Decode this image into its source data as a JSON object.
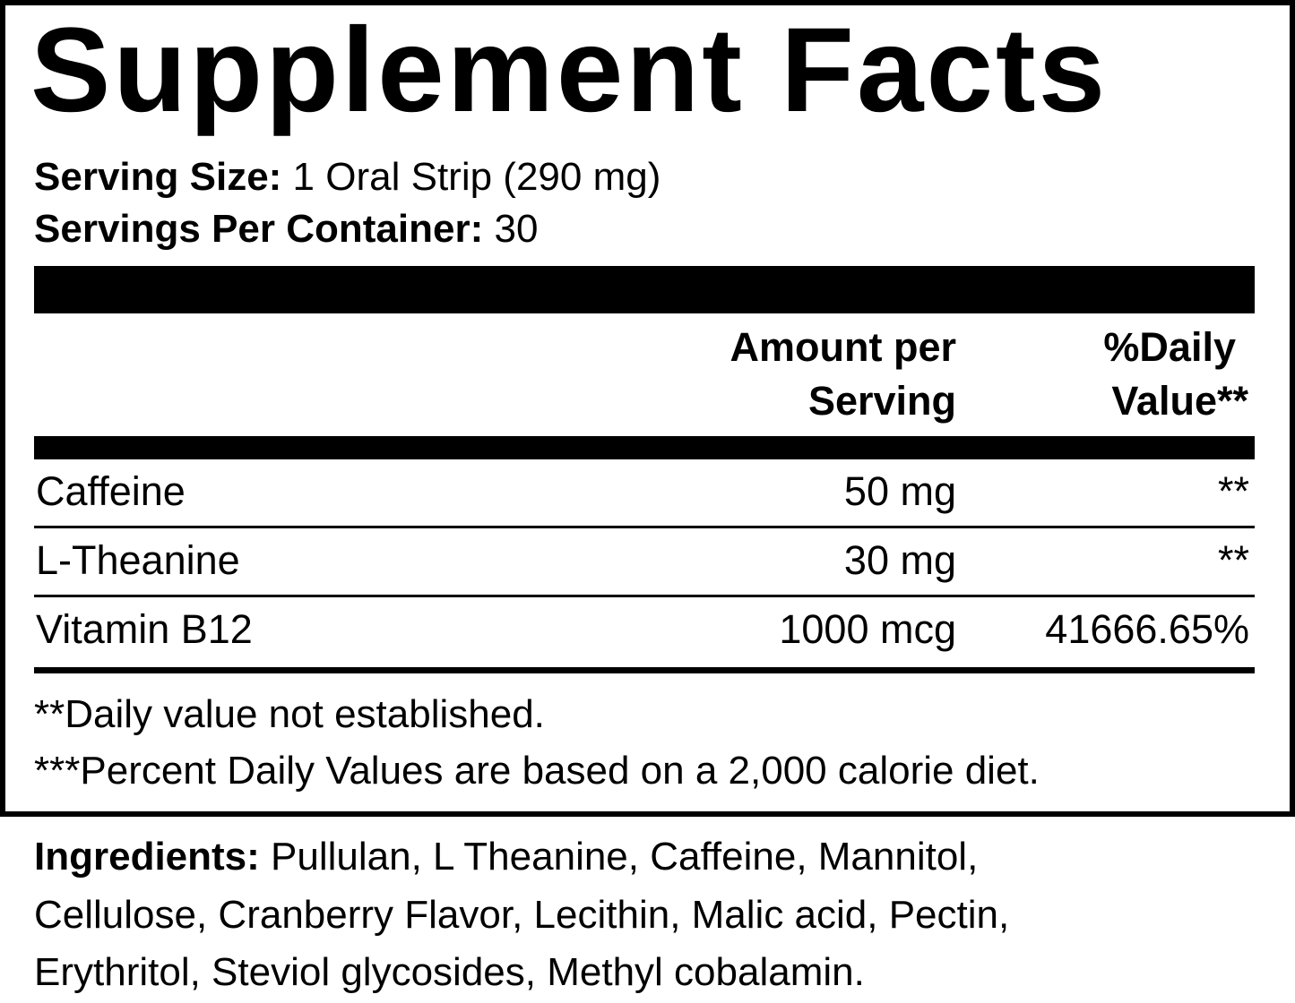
{
  "title": "Supplement Facts",
  "serving_size": {
    "label": "Serving Size:",
    "value": "1 Oral Strip (290 mg)"
  },
  "servings_per_container": {
    "label": "Servings Per Container:",
    "value": "30"
  },
  "table": {
    "headers": {
      "amount_line1": "Amount per",
      "amount_line2": "Serving",
      "dv_line1": "%Daily",
      "dv_line2": "Value**"
    },
    "rows": [
      {
        "name": "Caffeine",
        "amount": "50 mg",
        "dv": "**"
      },
      {
        "name": "L-Theanine",
        "amount": "30 mg",
        "dv": "**"
      },
      {
        "name": "Vitamin B12",
        "amount": "1000 mcg",
        "dv": "41666.65%"
      }
    ]
  },
  "footnotes": [
    "**Daily value not established.",
    "***Percent Daily Values are based on a 2,000 calorie diet."
  ],
  "ingredients": {
    "label": "Ingredients:",
    "line1": "Pullulan, L Theanine, Caffeine, Mannitol,",
    "line2": "Cellulose, Cranberry Flavor, Lecithin, Malic acid, Pectin,",
    "line3": "Erythritol, Steviol glycosides, Methyl cobalamin."
  }
}
